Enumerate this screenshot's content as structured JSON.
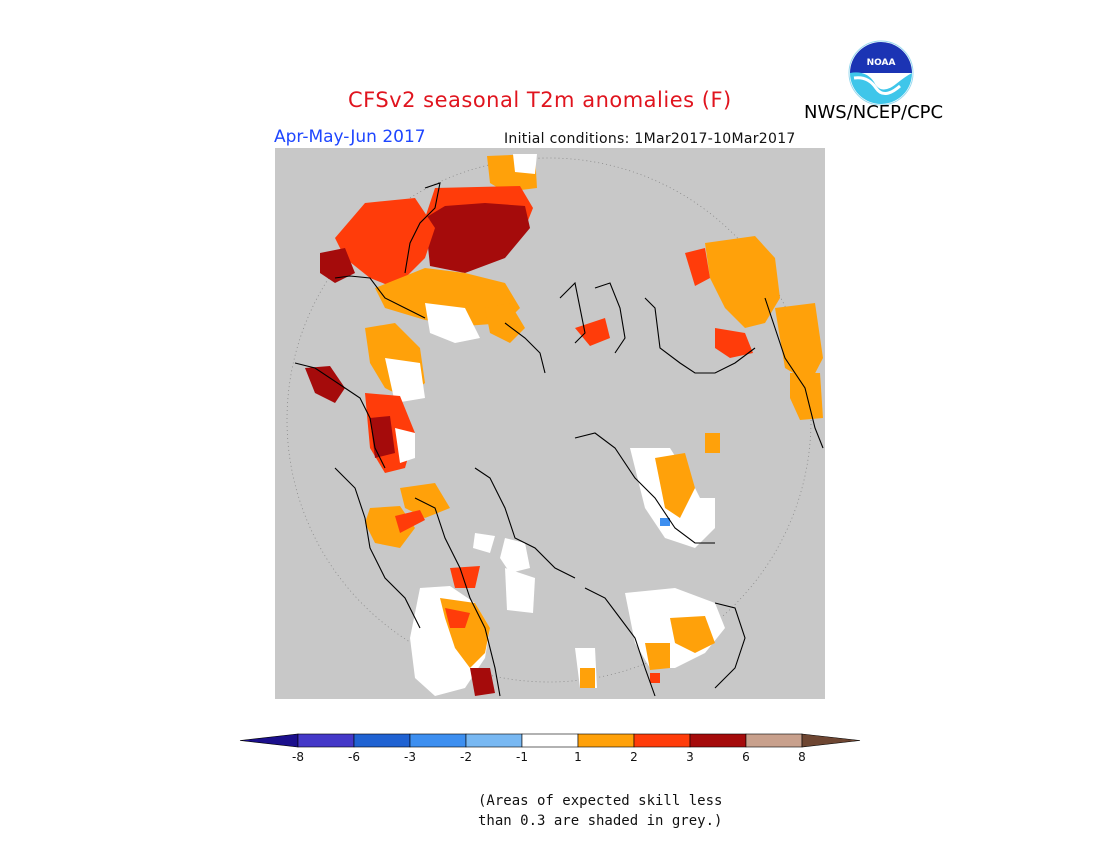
{
  "header": {
    "title": "CFSv2 seasonal T2m anomalies (F)",
    "season": "Apr-May-Jun 2017",
    "initial_conditions": "Initial conditions: 1Mar2017-10Mar2017",
    "agency": "NWS/NCEP/CPC",
    "logo_text": "NOAA"
  },
  "legend": {
    "bins": [
      {
        "color": "#1b0f8c",
        "label": "-8"
      },
      {
        "color": "#4438c8",
        "label": "-6"
      },
      {
        "color": "#1f62d2",
        "label": "-3"
      },
      {
        "color": "#3d8ff0",
        "label": "-2"
      },
      {
        "color": "#78b8f2",
        "label": "-1"
      },
      {
        "color": "#ffffff",
        "label": "1"
      },
      {
        "color": "#ffa10a",
        "label": "2"
      },
      {
        "color": "#ff3c0a",
        "label": "3"
      },
      {
        "color": "#a50b0b",
        "label": "6"
      },
      {
        "color": "#c8a08c",
        "label": "8"
      },
      {
        "color": "#6e4632",
        "label": ""
      }
    ]
  },
  "note": {
    "line1": "(Areas of expected skill less",
    "line2": "than 0.3 are shaded in grey.)"
  },
  "map": {
    "background": "#c8c8c8",
    "projection": "polar stereographic, north pole"
  }
}
